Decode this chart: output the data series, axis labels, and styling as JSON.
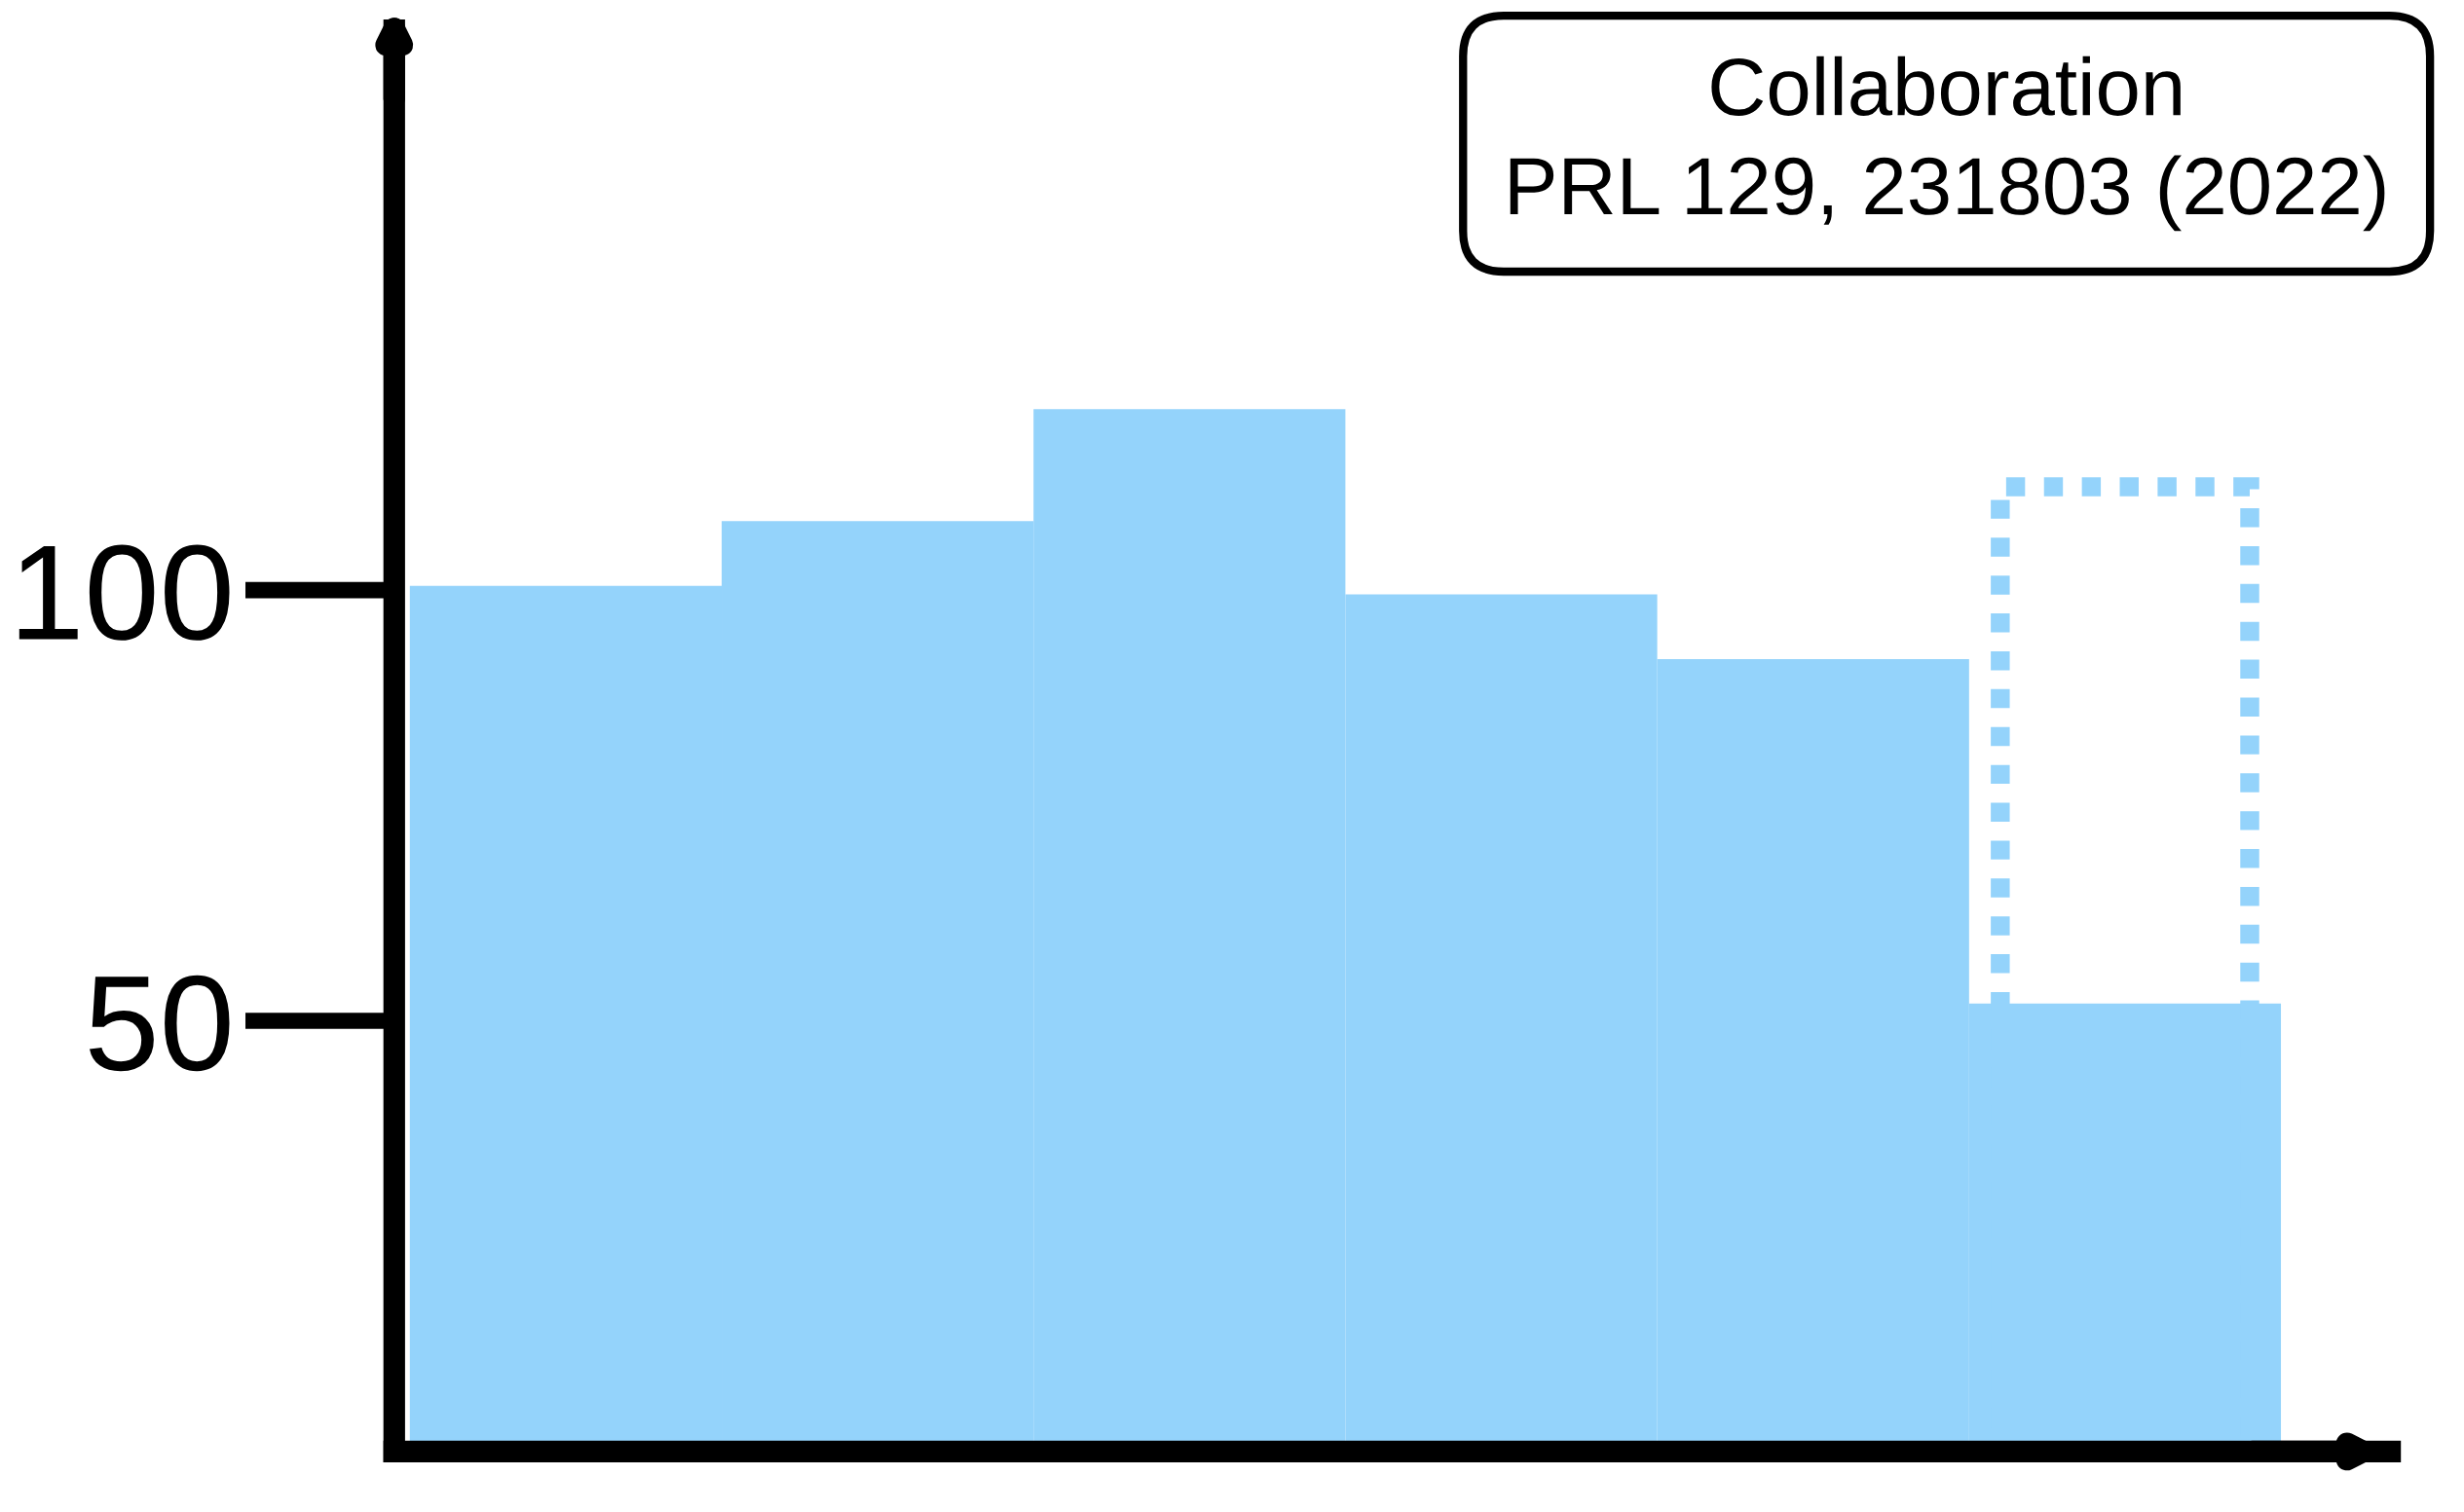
{
  "chart_data": {
    "type": "bar",
    "categories": [
      null,
      null,
      null,
      null,
      null,
      null
    ],
    "series": [
      {
        "color": "#94d3fb",
        "values": [
          100.5,
          108,
          121,
          99.5,
          92,
          52
        ]
      },
      {
        "color": "#94d3fb",
        "values": [
          null,
          null,
          null,
          null,
          null,
          112
        ],
        "line_style": "dotted"
      }
    ],
    "ylim": [
      0,
      165
    ],
    "yticks": [
      50,
      100
    ],
    "annotations": [
      "Collaboration",
      "PRL 129, 231803 (2022)"
    ],
    "tick_labels": "y",
    "grid": false
  }
}
